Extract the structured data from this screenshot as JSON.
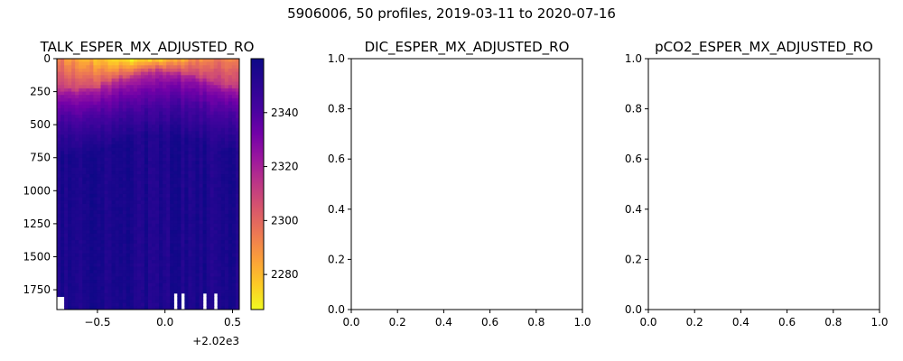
{
  "figure": {
    "suptitle": "5906006, 50 profiles, 2019-03-11 to 2020-07-16"
  },
  "chart_data": [
    {
      "type": "heatmap",
      "title": "TALK_ESPER_MX_ADJUSTED_RO",
      "x_ticks": [
        "−0.5",
        "0.0",
        "0.5"
      ],
      "x_tick_values": [
        -0.5,
        0.0,
        0.5
      ],
      "x_offset_label": "+2.02e3",
      "xlim": [
        -0.8,
        0.55
      ],
      "y_ticks": [
        "0",
        "250",
        "500",
        "750",
        "1000",
        "1250",
        "1500",
        "1750"
      ],
      "y_tick_values": [
        0,
        250,
        500,
        750,
        1000,
        1250,
        1500,
        1750
      ],
      "ylim": [
        1900,
        0
      ],
      "y_inverted": true,
      "colorbar": {
        "ticks": [
          "2340",
          "2320",
          "2300",
          "2280"
        ],
        "tick_values": [
          2340,
          2320,
          2300,
          2280
        ],
        "range": [
          2267,
          2360
        ],
        "colormap": "plasma_r"
      },
      "data_summary": {
        "profiles": 50,
        "surface_value_range": [
          2268,
          2318
        ],
        "deep_value_range": [
          2350,
          2360
        ],
        "mixed_layer_depth_range": [
          60,
          230
        ]
      }
    },
    {
      "type": "line",
      "title": "DIC_ESPER_MX_ADJUSTED_RO",
      "empty": true,
      "xlim": [
        0.0,
        1.0
      ],
      "ylim": [
        0.0,
        1.0
      ],
      "x_ticks": [
        "0.0",
        "0.2",
        "0.4",
        "0.6",
        "0.8",
        "1.0"
      ],
      "x_tick_values": [
        0.0,
        0.2,
        0.4,
        0.6,
        0.8,
        1.0
      ],
      "y_ticks": [
        "0.0",
        "0.2",
        "0.4",
        "0.6",
        "0.8",
        "1.0"
      ],
      "y_tick_values": [
        0.0,
        0.2,
        0.4,
        0.6,
        0.8,
        1.0
      ]
    },
    {
      "type": "line",
      "title": "pCO2_ESPER_MX_ADJUSTED_RO",
      "empty": true,
      "xlim": [
        0.0,
        1.0
      ],
      "ylim": [
        0.0,
        1.0
      ],
      "x_ticks": [
        "0.0",
        "0.2",
        "0.4",
        "0.6",
        "0.8",
        "1.0"
      ],
      "x_tick_values": [
        0.0,
        0.2,
        0.4,
        0.6,
        0.8,
        1.0
      ],
      "y_ticks": [
        "0.0",
        "0.2",
        "0.4",
        "0.6",
        "0.8",
        "1.0"
      ],
      "y_tick_values": [
        0.0,
        0.2,
        0.4,
        0.6,
        0.8,
        1.0
      ]
    }
  ]
}
